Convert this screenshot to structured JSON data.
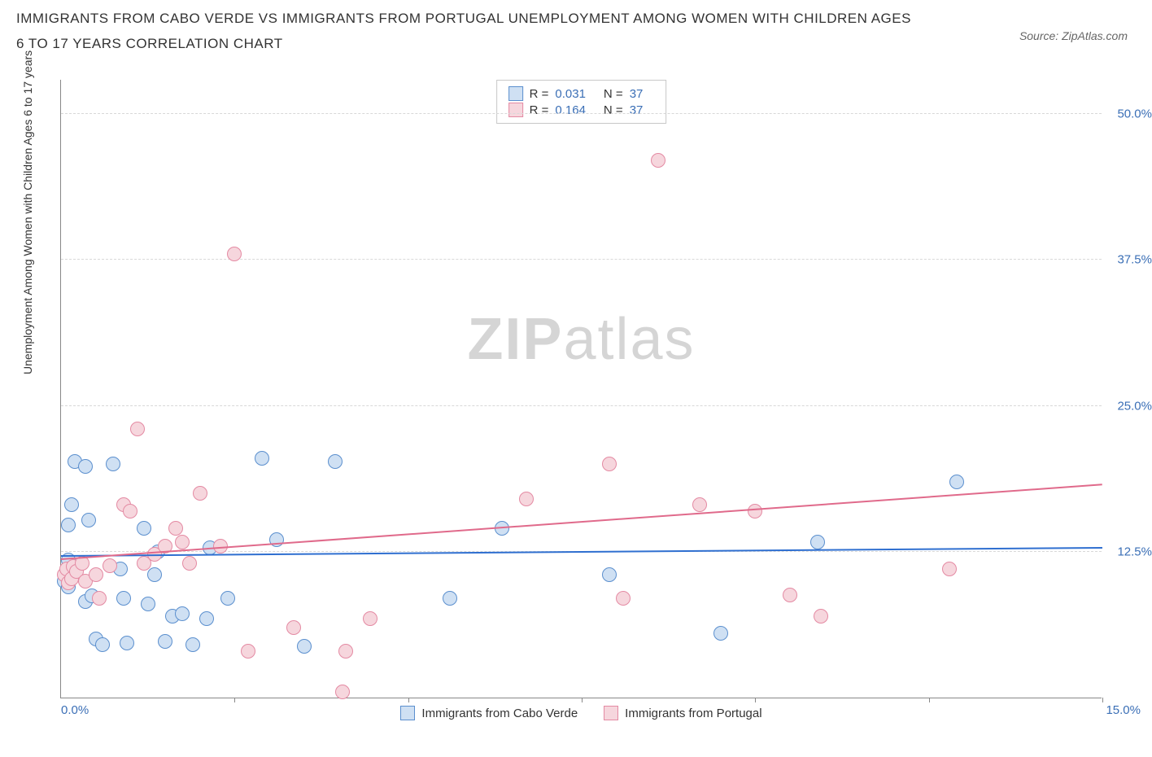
{
  "header": {
    "title": "IMMIGRANTS FROM CABO VERDE VS IMMIGRANTS FROM PORTUGAL UNEMPLOYMENT AMONG WOMEN WITH CHILDREN AGES 6 TO 17 YEARS CORRELATION CHART",
    "source": "Source: ZipAtlas.com"
  },
  "chart": {
    "type": "scatter",
    "ylabel": "Unemployment Among Women with Children Ages 6 to 17 years",
    "xlim": [
      0,
      15
    ],
    "ylim": [
      0,
      53
    ],
    "xtick_label_min": "0.0%",
    "xtick_label_max": "15.0%",
    "xticks_at": [
      2.5,
      5.0,
      7.5,
      10.0,
      12.5,
      15.0
    ],
    "ytick_labels": [
      {
        "v": 12.5,
        "label": "12.5%"
      },
      {
        "v": 25.0,
        "label": "25.0%"
      },
      {
        "v": 37.5,
        "label": "37.5%"
      },
      {
        "v": 50.0,
        "label": "50.0%"
      }
    ],
    "grid_at": [
      12.5,
      25.0,
      37.5,
      50.0
    ],
    "grid_color": "#d8d8d8",
    "axis_color": "#888888",
    "tick_label_color": "#3b6fb6",
    "background_color": "#ffffff",
    "watermark": "ZIPatlas",
    "point_radius": 9,
    "point_border_width": 1,
    "trend_line_width": 2,
    "series": [
      {
        "name": "Immigrants from Cabo Verde",
        "fill": "#cfe0f3",
        "stroke": "#5b8fce",
        "trend_color": "#2f6fd0",
        "R": "0.031",
        "N": "37",
        "trend": {
          "y_at_xmin": 12.1,
          "y_at_xmax": 12.8
        },
        "points": [
          [
            0.05,
            10.0
          ],
          [
            0.1,
            14.8
          ],
          [
            0.1,
            9.5
          ],
          [
            0.1,
            11.8
          ],
          [
            0.15,
            16.5
          ],
          [
            0.2,
            20.2
          ],
          [
            0.35,
            8.2
          ],
          [
            0.35,
            19.8
          ],
          [
            0.4,
            15.2
          ],
          [
            0.45,
            8.7
          ],
          [
            0.5,
            5.0
          ],
          [
            0.6,
            4.5
          ],
          [
            0.75,
            20.0
          ],
          [
            0.85,
            11.0
          ],
          [
            0.9,
            8.5
          ],
          [
            0.95,
            4.7
          ],
          [
            1.2,
            14.5
          ],
          [
            1.25,
            8.0
          ],
          [
            1.35,
            10.5
          ],
          [
            1.4,
            12.5
          ],
          [
            1.5,
            4.8
          ],
          [
            1.6,
            7.0
          ],
          [
            1.75,
            7.2
          ],
          [
            1.9,
            4.5
          ],
          [
            2.1,
            6.8
          ],
          [
            2.15,
            12.8
          ],
          [
            2.4,
            8.5
          ],
          [
            2.9,
            20.5
          ],
          [
            3.5,
            4.4
          ],
          [
            3.1,
            13.5
          ],
          [
            3.95,
            20.2
          ],
          [
            5.6,
            8.5
          ],
          [
            6.35,
            14.5
          ],
          [
            7.9,
            10.5
          ],
          [
            9.5,
            5.5
          ],
          [
            10.9,
            13.3
          ],
          [
            12.9,
            18.5
          ]
        ]
      },
      {
        "name": "Immigrants from Portugal",
        "fill": "#f6d6dd",
        "stroke": "#e48aa3",
        "trend_color": "#e06a8b",
        "R": "0.164",
        "N": "37",
        "trend": {
          "y_at_xmin": 11.8,
          "y_at_xmax": 18.2
        },
        "points": [
          [
            0.05,
            10.5
          ],
          [
            0.08,
            11.0
          ],
          [
            0.1,
            9.8
          ],
          [
            0.15,
            10.2
          ],
          [
            0.18,
            11.2
          ],
          [
            0.22,
            10.8
          ],
          [
            0.3,
            11.5
          ],
          [
            0.35,
            10.0
          ],
          [
            0.5,
            10.5
          ],
          [
            0.55,
            8.5
          ],
          [
            0.7,
            11.3
          ],
          [
            0.9,
            16.5
          ],
          [
            1.0,
            16.0
          ],
          [
            1.1,
            23.0
          ],
          [
            1.2,
            11.5
          ],
          [
            1.35,
            12.3
          ],
          [
            1.5,
            13.0
          ],
          [
            1.65,
            14.5
          ],
          [
            1.75,
            13.3
          ],
          [
            1.85,
            11.5
          ],
          [
            2.0,
            17.5
          ],
          [
            2.3,
            13.0
          ],
          [
            2.5,
            38.0
          ],
          [
            2.7,
            4.0
          ],
          [
            3.35,
            6.0
          ],
          [
            4.05,
            0.5
          ],
          [
            4.1,
            4.0
          ],
          [
            4.45,
            6.8
          ],
          [
            6.7,
            17.0
          ],
          [
            7.9,
            20.0
          ],
          [
            8.1,
            8.5
          ],
          [
            8.6,
            46.0
          ],
          [
            9.2,
            16.5
          ],
          [
            10.0,
            16.0
          ],
          [
            10.95,
            7.0
          ],
          [
            12.8,
            11.0
          ],
          [
            10.5,
            8.8
          ]
        ]
      }
    ],
    "legend_labels": {
      "R": "R =",
      "N": "N ="
    },
    "bottom_legend": [
      {
        "label": "Immigrants from Cabo Verde",
        "fill": "#cfe0f3",
        "stroke": "#5b8fce"
      },
      {
        "label": "Immigrants from Portugal",
        "fill": "#f6d6dd",
        "stroke": "#e48aa3"
      }
    ]
  }
}
